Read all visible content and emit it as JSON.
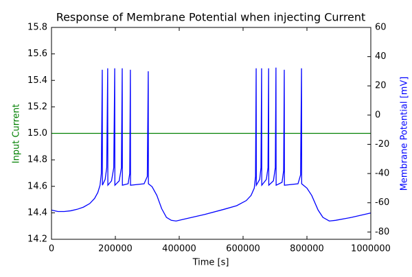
{
  "chart_data": {
    "type": "line",
    "title": "Response of Membrane Potential when injecting Current",
    "xlabel": "Time [s]",
    "ylabel": "Input Current",
    "y2label": "Membrane Potential [mV]",
    "ylabel_color": "#008000",
    "y2label_color": "#0000ff",
    "xlim": [
      0,
      1000000
    ],
    "xticks": [
      0,
      200000,
      400000,
      600000,
      800000,
      1000000
    ],
    "ylim": [
      14.2,
      15.8
    ],
    "yticks": [
      14.2,
      14.4,
      14.6,
      14.8,
      {
        "value": 15,
        "label": "15.0"
      },
      15.2,
      15.4,
      15.6,
      15.8
    ],
    "y2lim": [
      -85,
      60
    ],
    "y2ticks": [
      -80,
      -60,
      -40,
      -20,
      0,
      20,
      40,
      60
    ],
    "series": [
      {
        "color": "#008000",
        "axis": "y",
        "x": [
          0,
          1000000
        ],
        "values": [
          15,
          15
        ]
      },
      {
        "color": "#0000ff",
        "axis": "y2",
        "x": [
          0,
          20000,
          40000,
          60000,
          80000,
          100000,
          120000,
          135000,
          145000,
          152000,
          156000,
          159000,
          159500,
          168000,
          173000,
          176000,
          176500,
          188000,
          195000,
          198000,
          198500,
          212000,
          219000,
          221500,
          222000,
          240000,
          245000,
          247000,
          247500,
          290000,
          300000,
          303000,
          303500,
          315000,
          330000,
          345000,
          360000,
          375000,
          390000,
          420000,
          480000,
          540000,
          580000,
          610000,
          625000,
          635000,
          639000,
          641000,
          641500,
          652000,
          656000,
          658000,
          658500,
          673000,
          678000,
          680000,
          680500,
          695000,
          701000,
          703000,
          703500,
          722000,
          727000,
          729000,
          729500,
          772000,
          780000,
          783000,
          783500,
          800000,
          815000,
          835000,
          850000,
          870000,
          890000,
          940000,
          1000000
        ],
        "values": [
          -65,
          -66,
          -66,
          -65.5,
          -64.5,
          -63,
          -60.5,
          -57,
          -53,
          -48,
          -40,
          31,
          -48,
          -44,
          -36,
          32,
          -48,
          -45,
          -36,
          32,
          -48,
          -45,
          -36,
          32,
          -48,
          -47,
          -40,
          31,
          -48,
          -47,
          -42,
          30,
          -47,
          -49,
          -55,
          -64,
          -70,
          -72,
          -72.5,
          -71,
          -68,
          -64.5,
          -62,
          -58.5,
          -55,
          -50,
          -42,
          32,
          -48,
          -44,
          -36,
          32,
          -48,
          -44,
          -36,
          32,
          -48,
          -45,
          -36,
          32.5,
          -48,
          -46,
          -38,
          31,
          -48,
          -47,
          -41,
          32,
          -47,
          -50,
          -55,
          -65,
          -70,
          -72.5,
          -72,
          -70,
          -67
        ]
      }
    ]
  }
}
